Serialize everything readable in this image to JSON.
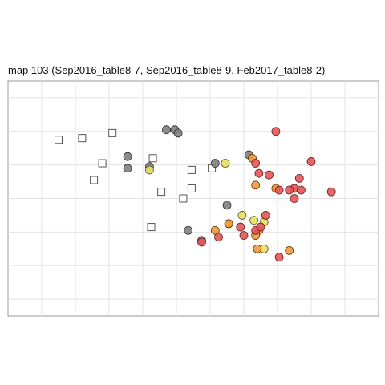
{
  "chart_data": {
    "type": "scatter",
    "title": "map 103 (Sep2016_table8-7, Sep2016_table8-9, Feb2017_table8-2)",
    "xlabel": "",
    "ylabel": "",
    "xlim": [
      0,
      11
    ],
    "ylim": [
      -6.5,
      0.5
    ],
    "grid": true,
    "legend": "none",
    "series": [
      {
        "marker": "square-open",
        "color": "#ffffff",
        "stroke": "#555555",
        "points": [
          {
            "x": 1.5,
            "y": -1.25
          },
          {
            "x": 2.2,
            "y": -1.2
          },
          {
            "x": 3.1,
            "y": -1.05
          },
          {
            "x": 2.8,
            "y": -1.95
          },
          {
            "x": 2.55,
            "y": -2.45
          },
          {
            "x": 4.3,
            "y": -1.8
          },
          {
            "x": 4.55,
            "y": -2.8
          },
          {
            "x": 4.25,
            "y": -3.85
          },
          {
            "x": 5.2,
            "y": -3.0
          },
          {
            "x": 5.45,
            "y": -2.7
          },
          {
            "x": 5.45,
            "y": -2.15
          },
          {
            "x": 6.05,
            "y": -2.1
          }
        ]
      },
      {
        "marker": "circle",
        "color": "#808080",
        "stroke": "#333333",
        "points": [
          {
            "x": 4.7,
            "y": -0.95
          },
          {
            "x": 4.95,
            "y": -0.95
          },
          {
            "x": 5.05,
            "y": -1.05
          },
          {
            "x": 3.55,
            "y": -1.75
          },
          {
            "x": 3.55,
            "y": -2.1
          },
          {
            "x": 4.2,
            "y": -2.05
          },
          {
            "x": 6.15,
            "y": -1.95
          },
          {
            "x": 7.15,
            "y": -1.7
          },
          {
            "x": 6.5,
            "y": -3.2
          },
          {
            "x": 5.35,
            "y": -3.95
          },
          {
            "x": 5.75,
            "y": -4.25
          }
        ]
      },
      {
        "marker": "circle",
        "color": "#e8e060",
        "stroke": "#555533",
        "points": [
          {
            "x": 4.2,
            "y": -2.15
          },
          {
            "x": 6.45,
            "y": -1.95
          },
          {
            "x": 6.95,
            "y": -3.5
          },
          {
            "x": 7.3,
            "y": -3.65
          },
          {
            "x": 7.6,
            "y": -3.7
          },
          {
            "x": 6.55,
            "y": -3.75
          },
          {
            "x": 7.6,
            "y": -4.5
          }
        ]
      },
      {
        "marker": "circle",
        "color": "#ee9a3a",
        "stroke": "#663300",
        "points": [
          {
            "x": 7.25,
            "y": -1.8
          },
          {
            "x": 7.35,
            "y": -2.6
          },
          {
            "x": 7.95,
            "y": -2.7
          },
          {
            "x": 6.55,
            "y": -3.75
          },
          {
            "x": 6.15,
            "y": -3.95
          },
          {
            "x": 7.45,
            "y": -3.95
          },
          {
            "x": 7.35,
            "y": -4.1
          },
          {
            "x": 7.4,
            "y": -4.5
          },
          {
            "x": 8.35,
            "y": -4.55
          }
        ]
      },
      {
        "marker": "circle",
        "color": "#e55555",
        "stroke": "#662222",
        "points": [
          {
            "x": 7.95,
            "y": -1.0
          },
          {
            "x": 7.35,
            "y": -1.95
          },
          {
            "x": 7.45,
            "y": -2.25
          },
          {
            "x": 7.75,
            "y": -2.3
          },
          {
            "x": 9.0,
            "y": -1.9
          },
          {
            "x": 8.65,
            "y": -2.4
          },
          {
            "x": 8.5,
            "y": -2.7
          },
          {
            "x": 8.05,
            "y": -2.75
          },
          {
            "x": 8.35,
            "y": -2.75
          },
          {
            "x": 8.7,
            "y": -2.75
          },
          {
            "x": 9.6,
            "y": -2.8
          },
          {
            "x": 8.5,
            "y": -3.0
          },
          {
            "x": 7.65,
            "y": -3.5
          },
          {
            "x": 6.9,
            "y": -3.85
          },
          {
            "x": 7.35,
            "y": -3.95
          },
          {
            "x": 7.5,
            "y": -3.85
          },
          {
            "x": 6.25,
            "y": -4.15
          },
          {
            "x": 7.0,
            "y": -4.1
          },
          {
            "x": 5.75,
            "y": -4.3
          },
          {
            "x": 8.05,
            "y": -4.75
          }
        ]
      }
    ]
  }
}
